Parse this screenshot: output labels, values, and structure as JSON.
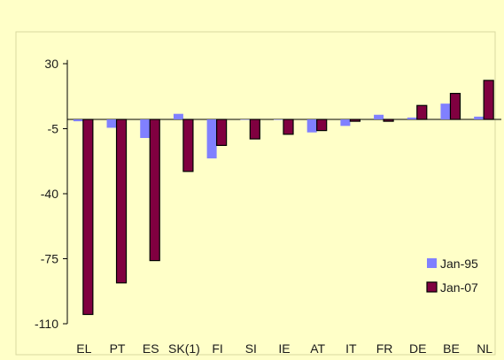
{
  "chart_data": {
    "type": "bar",
    "title": "",
    "xlabel": "",
    "ylabel": "",
    "categories": [
      "EL",
      "PT",
      "ES",
      "SK(1)",
      "FI",
      "SI",
      "IE",
      "AT",
      "IT",
      "FR",
      "DE",
      "BE",
      "NL"
    ],
    "series": [
      {
        "name": "Jan-95",
        "color": "#8080FF",
        "values": [
          -1,
          -4.5,
          -10,
          3,
          -21,
          0,
          0,
          -7,
          -3.5,
          2.5,
          1,
          8.5,
          1.5
        ]
      },
      {
        "name": "Jan-07",
        "color": "#800040",
        "values": [
          -105,
          -88,
          -76,
          -28,
          -14,
          -10.5,
          -8,
          -6,
          -1,
          -1,
          7.5,
          14,
          21
        ]
      }
    ],
    "yticks": [
      30,
      -5,
      -40,
      -75,
      -110
    ],
    "ylim": [
      -110,
      32
    ],
    "grid": false,
    "legend_position": "bottom-right"
  }
}
